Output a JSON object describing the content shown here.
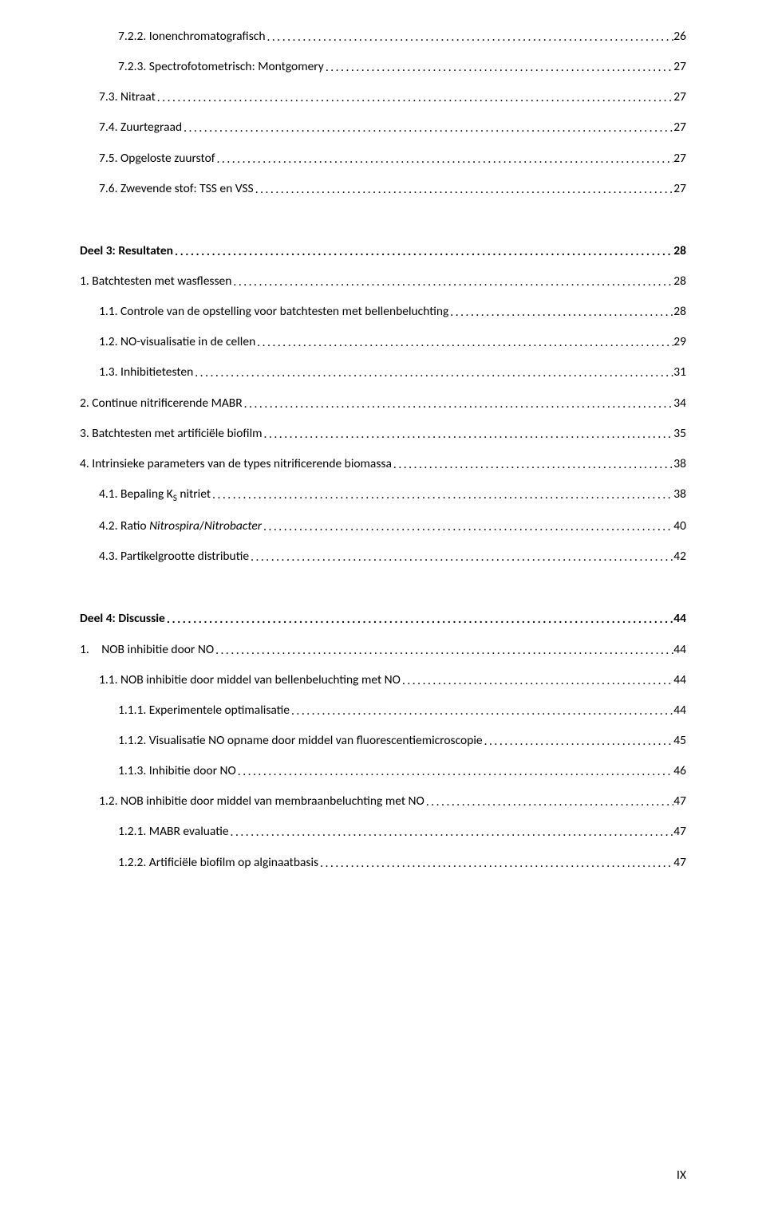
{
  "entries": [
    {
      "indent": 2,
      "bold": false,
      "gap": "",
      "label": "7.2.2. Ionenchromatografisch",
      "page": "26"
    },
    {
      "indent": 2,
      "bold": false,
      "gap": "",
      "label": "7.2.3. Spectrofotometrisch: Montgomery",
      "page": "27"
    },
    {
      "indent": 1,
      "bold": false,
      "gap": "",
      "label": "7.3. Nitraat",
      "page": "27"
    },
    {
      "indent": 1,
      "bold": false,
      "gap": "",
      "label": "7.4. Zuurtegraad",
      "page": "27"
    },
    {
      "indent": 1,
      "bold": false,
      "gap": "",
      "label": "7.5. Opgeloste zuurstof",
      "page": "27"
    },
    {
      "indent": 1,
      "bold": false,
      "gap": "",
      "label": "7.6. Zwevende stof: TSS en VSS",
      "page": "27"
    },
    {
      "indent": 0,
      "bold": true,
      "gap": "lg",
      "label": "Deel 3: Resultaten",
      "page": "28"
    },
    {
      "indent": 0,
      "bold": false,
      "gap": "",
      "label": "1. Batchtesten met wasflessen",
      "page": "28"
    },
    {
      "indent": 1,
      "bold": false,
      "gap": "",
      "label": "1.1. Controle van de opstelling voor batchtesten met bellenbeluchting",
      "page": "28"
    },
    {
      "indent": 1,
      "bold": false,
      "gap": "",
      "label": "1.2. NO-visualisatie in de cellen",
      "page": "29"
    },
    {
      "indent": 1,
      "bold": false,
      "gap": "",
      "label": "1.3. Inhibitietesten",
      "page": "31"
    },
    {
      "indent": 0,
      "bold": false,
      "gap": "",
      "label": "2. Continue nitrificerende MABR",
      "page": "34"
    },
    {
      "indent": 0,
      "bold": false,
      "gap": "",
      "label": "3. Batchtesten met artificiële biofilm",
      "page": "35"
    },
    {
      "indent": 0,
      "bold": false,
      "gap": "",
      "label": "4. Intrinsieke parameters van de types nitrificerende biomassa",
      "page": "38"
    },
    {
      "indent": 1,
      "bold": false,
      "gap": "",
      "label": "4.1. Bepaling K_S nitriet",
      "page": "38"
    },
    {
      "indent": 1,
      "bold": false,
      "gap": "",
      "label": "4.2. Ratio _Nitrospira_/_Nitrobacter_",
      "page": "40"
    },
    {
      "indent": 1,
      "bold": false,
      "gap": "",
      "label": "4.3. Partikelgrootte distributie",
      "page": "42"
    },
    {
      "indent": 0,
      "bold": true,
      "gap": "lg",
      "label": "Deel 4: Discussie",
      "page": "44"
    },
    {
      "indent": 0,
      "bold": false,
      "gap": "",
      "label": "1. NOB inhibitie door NO",
      "page": "44"
    },
    {
      "indent": 1,
      "bold": false,
      "gap": "",
      "label": "1.1. NOB inhibitie door middel van bellenbeluchting met NO",
      "page": "44"
    },
    {
      "indent": 2,
      "bold": false,
      "gap": "",
      "label": "1.1.1. Experimentele optimalisatie",
      "page": "44"
    },
    {
      "indent": 2,
      "bold": false,
      "gap": "",
      "label": "1.1.2. Visualisatie NO opname door middel van fluorescentiemicroscopie",
      "page": "45"
    },
    {
      "indent": 2,
      "bold": false,
      "gap": "",
      "label": "1.1.3. Inhibitie door NO",
      "page": "46"
    },
    {
      "indent": 1,
      "bold": false,
      "gap": "",
      "label": "1.2. NOB inhibitie door middel van membraanbeluchting met NO",
      "page": "47"
    },
    {
      "indent": 2,
      "bold": false,
      "gap": "",
      "label": "1.2.1. MABR evaluatie",
      "page": "47"
    },
    {
      "indent": 2,
      "bold": false,
      "gap": "",
      "label": "1.2.2. Artificiële biofilm op alginaatbasis",
      "page": "47"
    }
  ],
  "pageNumber": "IX"
}
